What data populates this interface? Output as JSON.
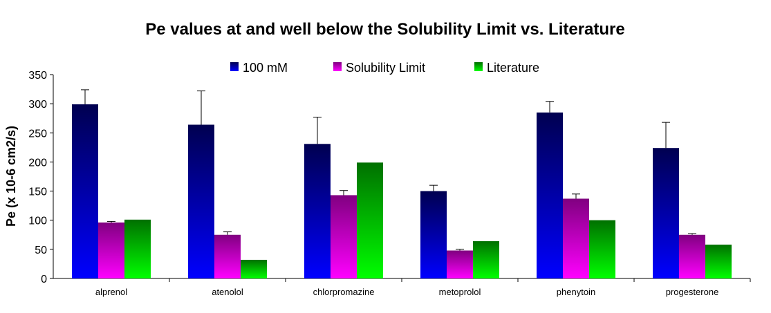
{
  "chart_data": {
    "type": "bar",
    "title": "Pe values at and well below the Solubility Limit vs. Literature",
    "xlabel": "",
    "ylabel": "Pe (x 10-6 cm2/s)",
    "ylim": [
      0,
      350
    ],
    "yticks": [
      0,
      50,
      100,
      150,
      200,
      250,
      300,
      350
    ],
    "grid": false,
    "legend_placement": "top",
    "categories": [
      "alprenol",
      "atenolol",
      "chlorpromazine",
      "metoprolol",
      "phenytoin",
      "progesterone"
    ],
    "series": [
      {
        "name": "100 mM",
        "values": [
          299,
          264,
          231,
          150,
          285,
          224
        ],
        "error_upper": [
          324,
          322,
          277,
          160,
          304,
          268
        ],
        "colors": [
          "#000050",
          "#0000ff"
        ]
      },
      {
        "name": "Solubility Limit",
        "values": [
          96,
          75,
          143,
          48,
          137,
          75
        ],
        "error_upper": [
          98,
          80,
          151,
          50,
          145,
          77
        ],
        "colors": [
          "#800080",
          "#ff00ff"
        ]
      },
      {
        "name": "Literature",
        "values": [
          101,
          32,
          199,
          64,
          100,
          58
        ],
        "error_upper": [
          null,
          null,
          null,
          null,
          null,
          null
        ],
        "colors": [
          "#007000",
          "#00ff00"
        ]
      }
    ]
  }
}
